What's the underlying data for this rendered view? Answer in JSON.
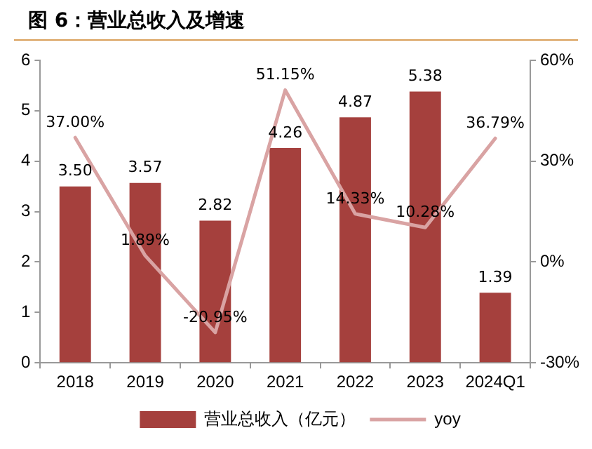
{
  "chart_data": {
    "type": "bar",
    "title": "图 6：营业总收入及增速",
    "categories": [
      "2018",
      "2019",
      "2020",
      "2021",
      "2022",
      "2023",
      "2024Q1"
    ],
    "series": [
      {
        "name": "营业总收入（亿元）",
        "color": "#a5403d",
        "values": [
          3.5,
          3.57,
          2.82,
          4.26,
          4.87,
          5.38,
          1.39
        ],
        "value_labels": [
          "3.50",
          "3.57",
          "2.82",
          "4.26",
          "4.87",
          "5.38",
          "1.39"
        ]
      },
      {
        "name": "yoy",
        "type": "line",
        "axis": "y2",
        "color": "#d9a3a3",
        "values": [
          37.0,
          1.89,
          -20.95,
          51.15,
          14.33,
          10.28,
          36.79
        ],
        "value_labels": [
          "37.00%",
          "1.89%",
          "-20.95%",
          "51.15%",
          "14.33%",
          "10.28%",
          "36.79%"
        ]
      }
    ],
    "ylim": [
      0,
      6
    ],
    "yticks": [
      0,
      1,
      2,
      3,
      4,
      5,
      6
    ],
    "y2lim": [
      -30,
      60
    ],
    "y2ticks": [
      {
        "value": -30,
        "label": "-30%"
      },
      {
        "value": 0,
        "label": "0%"
      },
      {
        "value": 30,
        "label": "30%"
      },
      {
        "value": 60,
        "label": "60%"
      }
    ],
    "grid": false,
    "legend": "bottom",
    "marker": "none",
    "line_style": "solid"
  }
}
